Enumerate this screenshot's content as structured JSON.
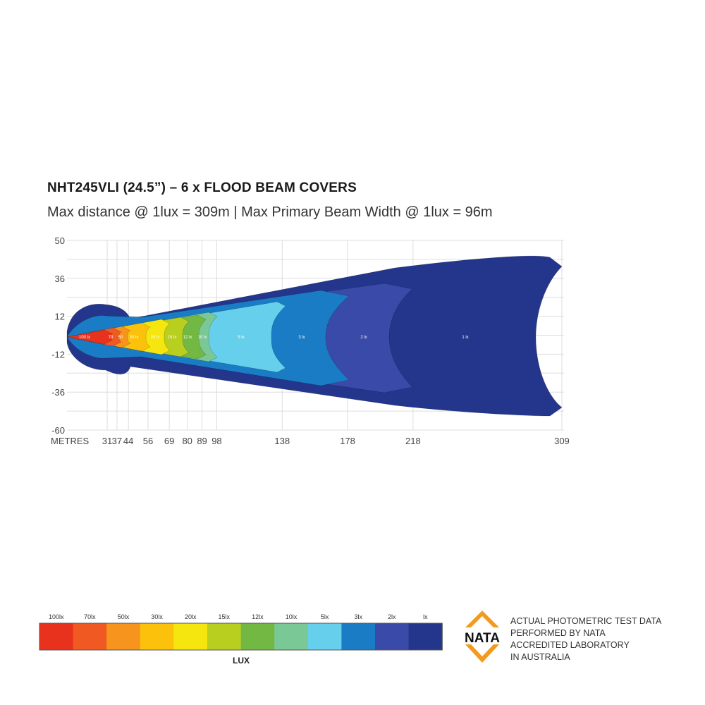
{
  "chart_data": {
    "type": "heatmap",
    "title": "NHT245VLI (24.5”) – 6 x FLOOD BEAM COVERS",
    "subtitle": "Max distance @ 1lux = 309m  |  Max Primary  Beam Width @ 1lux = 96m",
    "xlabel": "METRES",
    "x_ticks": [
      31,
      37,
      44,
      56,
      69,
      80,
      89,
      98,
      138,
      178,
      218,
      309
    ],
    "y_ticks": [
      50,
      36,
      12,
      -12,
      -36,
      -60
    ],
    "grid": true,
    "zones": [
      {
        "label": "100 lx",
        "lux": 100,
        "max_distance_m": 31,
        "color": "#e8321e"
      },
      {
        "label": "70",
        "lux": 70,
        "max_distance_m": 37,
        "color": "#f05a22"
      },
      {
        "label": "50",
        "lux": 50,
        "max_distance_m": 44,
        "color": "#f7941d"
      },
      {
        "label": "30 lx",
        "lux": 30,
        "max_distance_m": 56,
        "color": "#fcc20b"
      },
      {
        "label": "20 lx",
        "lux": 20,
        "max_distance_m": 69,
        "color": "#f5e60f"
      },
      {
        "label": "15 lx",
        "lux": 15,
        "max_distance_m": 80,
        "color": "#b9cf1f"
      },
      {
        "label": "12 lx",
        "lux": 12,
        "max_distance_m": 89,
        "color": "#74b844"
      },
      {
        "label": "10 lx",
        "lux": 10,
        "max_distance_m": 98,
        "color": "#79c896"
      },
      {
        "label": "5 lx",
        "lux": 5,
        "max_distance_m": 138,
        "color": "#66cfec"
      },
      {
        "label": "3 lx",
        "lux": 3,
        "max_distance_m": 178,
        "color": "#1a7cc4"
      },
      {
        "label": "2 lx",
        "lux": 2,
        "max_distance_m": 218,
        "color": "#3a4aa8"
      },
      {
        "label": "1 lx",
        "lux": 1,
        "max_distance_m": 309,
        "color": "#24358c"
      }
    ],
    "legend": {
      "title": "LUX",
      "entries": [
        {
          "label": "100lx",
          "color": "#e8321e"
        },
        {
          "label": "70lx",
          "color": "#f05a22"
        },
        {
          "label": "50lx",
          "color": "#f7941d"
        },
        {
          "label": "30lx",
          "color": "#fcc20b"
        },
        {
          "label": "20lx",
          "color": "#f5e60f"
        },
        {
          "label": "15lx",
          "color": "#b9cf1f"
        },
        {
          "label": "12lx",
          "color": "#74b844"
        },
        {
          "label": "10lx",
          "color": "#79c896"
        },
        {
          "label": "5lx",
          "color": "#66cfec"
        },
        {
          "label": "3lx",
          "color": "#1a7cc4"
        },
        {
          "label": "2lx",
          "color": "#3a4aa8"
        },
        {
          "label": "lx",
          "color": "#24358c"
        }
      ]
    }
  },
  "nata": {
    "logo_text": "NATA",
    "logo_color": "#f39a1e",
    "lines": [
      "ACTUAL PHOTOMETRIC TEST DATA",
      "PERFORMED BY NATA",
      "ACCREDITED LABORATORY",
      "IN AUSTRALIA"
    ]
  }
}
